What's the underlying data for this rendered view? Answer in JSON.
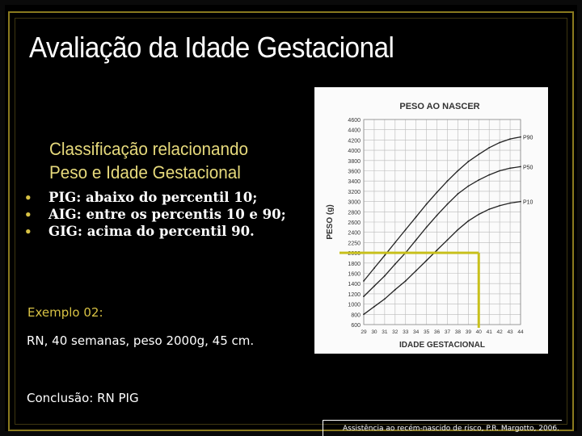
{
  "slide": {
    "title": "Avaliação da Idade Gestacional",
    "subtitle_line1": "Classificação relacionando",
    "subtitle_line2": "Peso e Idade Gestacional",
    "bullets": [
      "PIG: abaixo do percentil 10;",
      "AIG: entre os percentis 10 e 90;",
      "GIG: acima do percentil 90."
    ],
    "example_label": "Exemplo 02:",
    "example_text": "RN, 40 semanas, peso 2000g,  45 cm.",
    "conclusion": "Conclusão: RN PIG",
    "citation": "Assistência ao recém-nascido de risco, P.R. Margotto, 2006.",
    "colors": {
      "background": "#000000",
      "accent": "#d8c244",
      "frame": "#8a7a1e",
      "marker": "#c8c01c"
    }
  },
  "chart_data": {
    "type": "line",
    "title": "PESO AO NASCER",
    "xlabel": "IDADE GESTACIONAL",
    "ylabel": "PESO (g)",
    "x": [
      29,
      30,
      31,
      32,
      33,
      34,
      35,
      36,
      37,
      38,
      39,
      40,
      41,
      42,
      43,
      44
    ],
    "x_ticks": [
      "29",
      "30",
      "31",
      "32",
      "33",
      "34",
      "35",
      "36",
      "37",
      "38",
      "39",
      "40",
      "41",
      "42",
      "43",
      "44"
    ],
    "y_ticks": [
      600,
      800,
      1000,
      1200,
      1400,
      1600,
      1800,
      2000,
      2250,
      2400,
      2600,
      2800,
      3000,
      3200,
      3400,
      3600,
      3800,
      4000,
      4200,
      4400,
      4600
    ],
    "ylim": [
      600,
      4600
    ],
    "xlim": [
      29,
      44
    ],
    "series": [
      {
        "name": "P90",
        "values": [
          1450,
          1700,
          1950,
          2200,
          2450,
          2700,
          2950,
          3180,
          3400,
          3600,
          3780,
          3920,
          4050,
          4150,
          4220,
          4260
        ]
      },
      {
        "name": "P50",
        "values": [
          1150,
          1350,
          1550,
          1780,
          2000,
          2250,
          2500,
          2730,
          2950,
          3150,
          3300,
          3420,
          3520,
          3600,
          3650,
          3680
        ]
      },
      {
        "name": "P10",
        "values": [
          800,
          950,
          1100,
          1280,
          1450,
          1650,
          1850,
          2050,
          2250,
          2450,
          2620,
          2750,
          2850,
          2920,
          2970,
          3000
        ]
      }
    ],
    "marker": {
      "x": 40,
      "y": 2000
    },
    "grid": true
  }
}
